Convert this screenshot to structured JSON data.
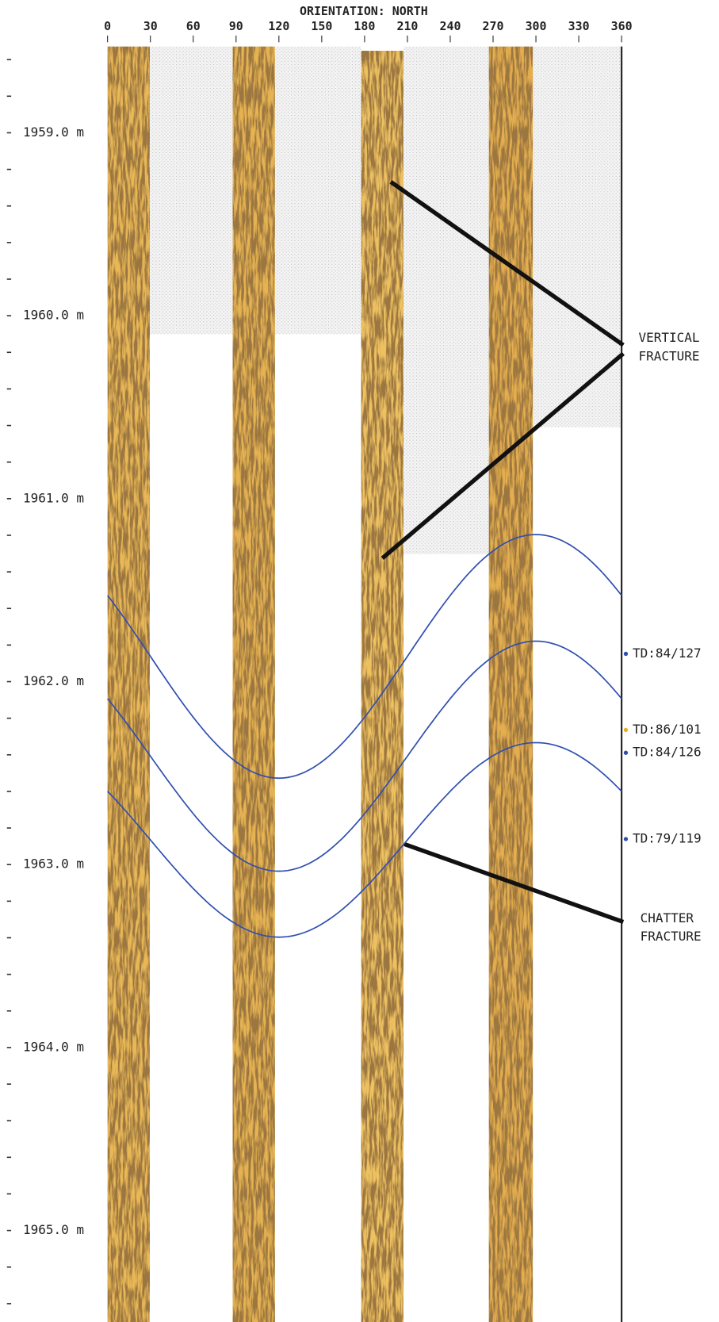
{
  "title": "ORIENTATION: NORTH",
  "orientation_ticks": [
    0,
    30,
    60,
    90,
    120,
    150,
    180,
    210,
    240,
    270,
    300,
    330,
    360
  ],
  "depth_labels": [
    "1959.0 m",
    "1960.0 m",
    "1961.0 m",
    "1962.0 m",
    "1963.0 m",
    "1964.0 m",
    "1965.0 m"
  ],
  "fracture_labels": [
    "TD:84/127",
    "TD:86/101",
    "TD:84/126",
    "TD:79/119"
  ],
  "annotations": {
    "vertical_fracture": [
      "VERTICAL",
      "FRACTURE"
    ],
    "chatter_fracture": [
      "CHATTER",
      "FRACTURE"
    ]
  }
}
